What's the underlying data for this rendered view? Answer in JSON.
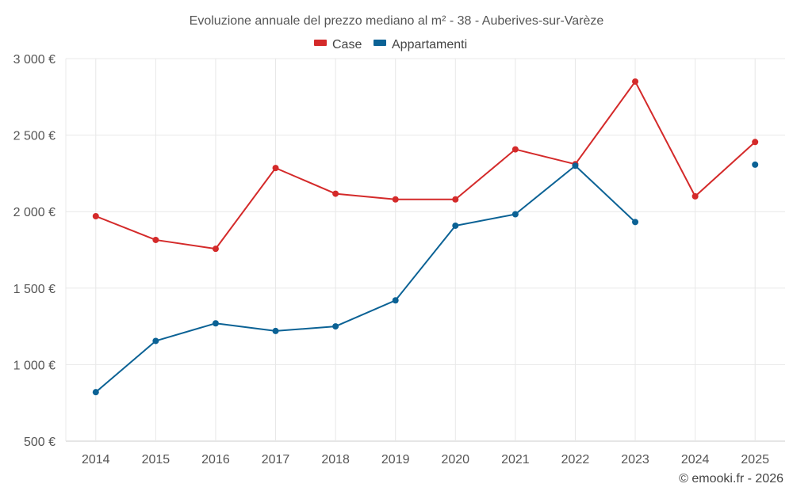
{
  "chart_data": {
    "type": "line",
    "title": "Evoluzione annuale del prezzo mediano al m² - 38 - Auberives-sur-Varèze",
    "categories": [
      "2014",
      "2015",
      "2016",
      "2017",
      "2018",
      "2019",
      "2020",
      "2021",
      "2022",
      "2023",
      "2024",
      "2025"
    ],
    "series": [
      {
        "name": "Case",
        "color": "#d42a2a",
        "values": [
          1970,
          1815,
          1757,
          2285,
          2117,
          2080,
          2080,
          2407,
          2310,
          2850,
          2100,
          2455
        ]
      },
      {
        "name": "Appartamenti",
        "color": "#0b6295",
        "values": [
          820,
          1155,
          1270,
          1220,
          1250,
          1420,
          1908,
          1983,
          2300,
          1932,
          null,
          2307
        ]
      }
    ],
    "ylim": [
      500,
      3000
    ],
    "yticks": [
      500,
      1000,
      1500,
      2000,
      2500,
      3000
    ],
    "ytick_labels": [
      "500 €",
      "1 000 €",
      "1 500 €",
      "2 000 €",
      "2 500 €",
      "3 000 €"
    ],
    "xlabel": "",
    "ylabel": "",
    "grid": true,
    "legend_position": "top-center"
  },
  "credit": "© emooki.fr - 2026"
}
